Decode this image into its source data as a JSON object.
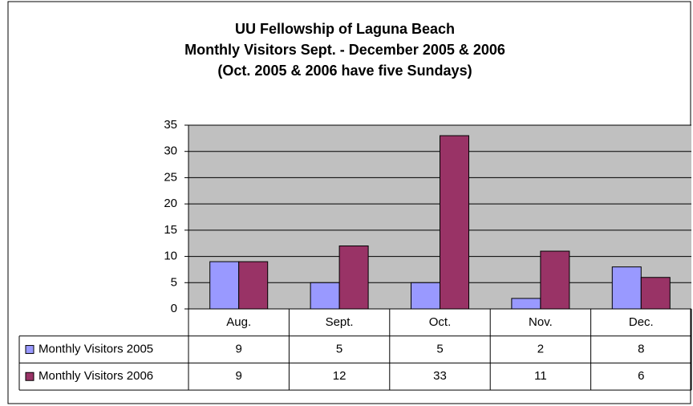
{
  "chart_data": {
    "type": "bar",
    "title": [
      "UU Fellowship of Laguna Beach",
      "Monthly Visitors Sept. - December 2005 & 2006",
      "(Oct. 2005 & 2006 have five Sundays)"
    ],
    "categories": [
      "Aug.",
      "Sept.",
      "Oct.",
      "Nov.",
      "Dec."
    ],
    "series": [
      {
        "name": "Monthly Visitors 2005",
        "color": "#9999ff",
        "values": [
          9,
          5,
          5,
          2,
          8
        ]
      },
      {
        "name": "Monthly Visitors 2006",
        "color": "#993366",
        "values": [
          9,
          12,
          33,
          11,
          6
        ]
      }
    ],
    "ylim": [
      0,
      35
    ],
    "yticks": [
      0,
      5,
      10,
      15,
      20,
      25,
      30,
      35
    ],
    "grid": true,
    "data_table": true
  }
}
